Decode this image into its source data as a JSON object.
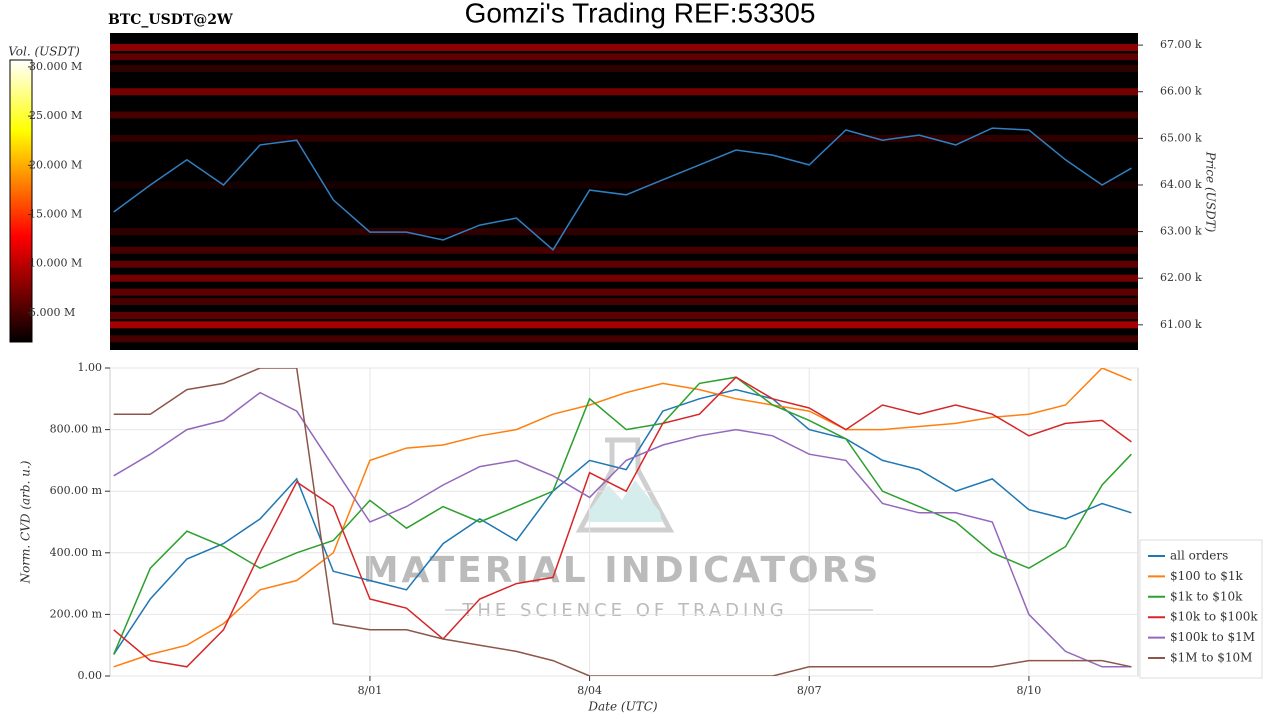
{
  "chart_data": [
    {
      "type": "heatmap",
      "title": "Gomzi's Trading REF:53305",
      "subtitle": "BTC_USDT@2W",
      "ylabel": "Price (USDT)",
      "x": [
        -2.5,
        -2,
        -1.5,
        -1,
        -0.5,
        0,
        0.5,
        1,
        1.5,
        2,
        2.5,
        3,
        3.5,
        4,
        4.5,
        5,
        5.5,
        6,
        6.5,
        7,
        7.5,
        8,
        8.5,
        9,
        9.5,
        10,
        10.5,
        11,
        11.4
      ],
      "xlim": [
        -2.55,
        11.49
      ],
      "series": [
        {
          "color": "#2f7fc1",
          "values": [
            63420,
            64000,
            64540,
            64000,
            64860,
            64960,
            63680,
            62990,
            62990,
            62820,
            63140,
            63290,
            62610,
            63890,
            63790,
            64110,
            64430,
            64750,
            64640,
            64430,
            65180,
            64960,
            65070,
            64860,
            65220,
            65180,
            64540,
            64000,
            64360
          ]
        }
      ],
      "ylim": [
        60460,
        67260
      ],
      "yticks": [
        {
          "value": 61000,
          "label": "61.00 k"
        },
        {
          "value": 62000,
          "label": "62.00 k"
        },
        {
          "value": 63000,
          "label": "63.00 k"
        },
        {
          "value": 64000,
          "label": "64.00 k"
        },
        {
          "value": 65000,
          "label": "65.00 k"
        },
        {
          "value": 66000,
          "label": "66.00 k"
        },
        {
          "value": 67000,
          "label": "67.00 k"
        }
      ],
      "heatmap": {
        "prices": [
          66950,
          66750,
          66500,
          66000,
          65500,
          65000,
          64000,
          63000,
          62600,
          62300,
          62000,
          61700,
          61500,
          61200,
          61000,
          60700
        ],
        "volumes": [
          8000000,
          6000000,
          4000000,
          7000000,
          5000000,
          4000000,
          3000000,
          4000000,
          5000000,
          6000000,
          7000000,
          6000000,
          5000000,
          6000000,
          9000000,
          5000000
        ]
      },
      "colorbar": {
        "label": "Vol. (USDT)",
        "lim": [
          2050000,
          30700000
        ],
        "ticks": [
          {
            "value": 5000000,
            "label": "5.000 M"
          },
          {
            "value": 10000000,
            "label": "10.000 M"
          },
          {
            "value": 15000000,
            "label": "15.000 M"
          },
          {
            "value": 20000000,
            "label": "20.000 M"
          },
          {
            "value": 25000000,
            "label": "25.000 M"
          },
          {
            "value": 30000000,
            "label": "30.000 M"
          }
        ]
      }
    },
    {
      "type": "line",
      "xlabel": "Date (UTC)",
      "ylabel": "Norm. CVD (arb. u.)",
      "x": [
        -2.5,
        -2,
        -1.5,
        -1,
        -0.5,
        0,
        0.5,
        1,
        1.5,
        2,
        2.5,
        3,
        3.5,
        4,
        4.5,
        5,
        5.5,
        6,
        6.5,
        7,
        7.5,
        8,
        8.5,
        9,
        9.5,
        10,
        10.5,
        11,
        11.4
      ],
      "xlim": [
        -2.55,
        11.49
      ],
      "xticks": [
        {
          "value": 1,
          "label": "8/01"
        },
        {
          "value": 4,
          "label": "8/04"
        },
        {
          "value": 7,
          "label": "8/07"
        },
        {
          "value": 10,
          "label": "8/10"
        }
      ],
      "ylim": [
        0,
        1
      ],
      "yticks": [
        {
          "value": 0,
          "label": "0.00"
        },
        {
          "value": 0.2,
          "label": "200.00 m"
        },
        {
          "value": 0.4,
          "label": "400.00 m"
        },
        {
          "value": 0.6,
          "label": "600.00 m"
        },
        {
          "value": 0.8,
          "label": "800.00 m"
        },
        {
          "value": 1,
          "label": "1.00"
        }
      ],
      "grid": true,
      "legend": "right",
      "watermark": {
        "text": "MATERIAL INDICATORS",
        "subtext": "THE SCIENCE OF TRADING"
      },
      "series": [
        {
          "name": "all orders",
          "color": "#1f77b4",
          "values": [
            0.07,
            0.25,
            0.38,
            0.43,
            0.51,
            0.64,
            0.34,
            0.31,
            0.28,
            0.43,
            0.51,
            0.44,
            0.6,
            0.7,
            0.67,
            0.86,
            0.9,
            0.93,
            0.9,
            0.8,
            0.77,
            0.7,
            0.67,
            0.6,
            0.64,
            0.54,
            0.51,
            0.56,
            0.53
          ]
        },
        {
          "name": "$100 to $1k",
          "color": "#ff7f0e",
          "values": [
            0.03,
            0.07,
            0.1,
            0.17,
            0.28,
            0.31,
            0.4,
            0.7,
            0.74,
            0.75,
            0.78,
            0.8,
            0.85,
            0.88,
            0.92,
            0.95,
            0.93,
            0.9,
            0.88,
            0.86,
            0.8,
            0.8,
            0.81,
            0.82,
            0.84,
            0.85,
            0.88,
            1,
            0.96
          ]
        },
        {
          "name": "$1k to $10k",
          "color": "#2ca02c",
          "values": [
            0.07,
            0.35,
            0.47,
            0.42,
            0.35,
            0.4,
            0.44,
            0.57,
            0.48,
            0.55,
            0.5,
            0.55,
            0.6,
            0.9,
            0.8,
            0.82,
            0.95,
            0.97,
            0.88,
            0.83,
            0.77,
            0.6,
            0.55,
            0.5,
            0.4,
            0.35,
            0.42,
            0.62,
            0.72
          ]
        },
        {
          "name": "$10k to $100k",
          "color": "#d62728",
          "values": [
            0.15,
            0.05,
            0.03,
            0.15,
            0.4,
            0.63,
            0.55,
            0.25,
            0.22,
            0.12,
            0.25,
            0.3,
            0.32,
            0.66,
            0.6,
            0.82,
            0.85,
            0.97,
            0.9,
            0.87,
            0.8,
            0.88,
            0.85,
            0.88,
            0.85,
            0.78,
            0.82,
            0.83,
            0.76
          ]
        },
        {
          "name": "$100k to $1M",
          "color": "#9467bd",
          "values": [
            0.65,
            0.72,
            0.8,
            0.83,
            0.92,
            0.86,
            0.68,
            0.5,
            0.55,
            0.62,
            0.68,
            0.7,
            0.65,
            0.58,
            0.7,
            0.75,
            0.78,
            0.8,
            0.78,
            0.72,
            0.7,
            0.56,
            0.53,
            0.53,
            0.5,
            0.2,
            0.08,
            0.03,
            0.03
          ]
        },
        {
          "name": "$1M to $10M",
          "color": "#8c564b",
          "values": [
            0.85,
            0.85,
            0.93,
            0.95,
            1,
            1,
            0.17,
            0.15,
            0.15,
            0.12,
            0.1,
            0.08,
            0.05,
            0,
            0,
            0,
            0,
            0,
            0,
            0.03,
            0.03,
            0.03,
            0.03,
            0.03,
            0.03,
            0.05,
            0.05,
            0.05,
            0.03
          ]
        }
      ]
    }
  ]
}
